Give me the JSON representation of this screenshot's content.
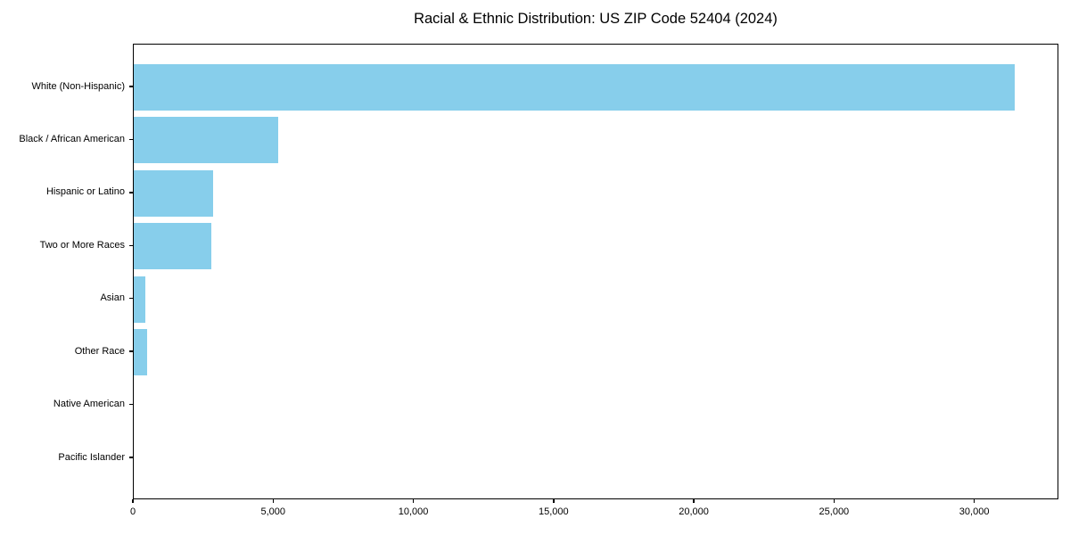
{
  "chart_data": {
    "type": "bar",
    "orientation": "horizontal",
    "title": "Racial & Ethnic Distribution: US ZIP Code 52404 (2024)",
    "categories": [
      "White (Non-Hispanic)",
      "Black / African American",
      "Hispanic or Latino",
      "Two or More Races",
      "Asian",
      "Other Race",
      "Native American",
      "Pacific Islander"
    ],
    "values": [
      31400,
      5150,
      2830,
      2770,
      420,
      460,
      0,
      0
    ],
    "xlabel": "",
    "ylabel": "",
    "xlim": [
      0,
      33000
    ],
    "xticks": [
      0,
      5000,
      10000,
      15000,
      20000,
      25000,
      30000
    ],
    "xtick_labels": [
      "0",
      "5,000",
      "10,000",
      "15,000",
      "20,000",
      "25,000",
      "30,000"
    ],
    "bar_color": "#87CEEB",
    "axis_color": "#000000",
    "text_color": "#000000",
    "background_color": "#FFFFFF",
    "grid": false,
    "legend": null
  }
}
